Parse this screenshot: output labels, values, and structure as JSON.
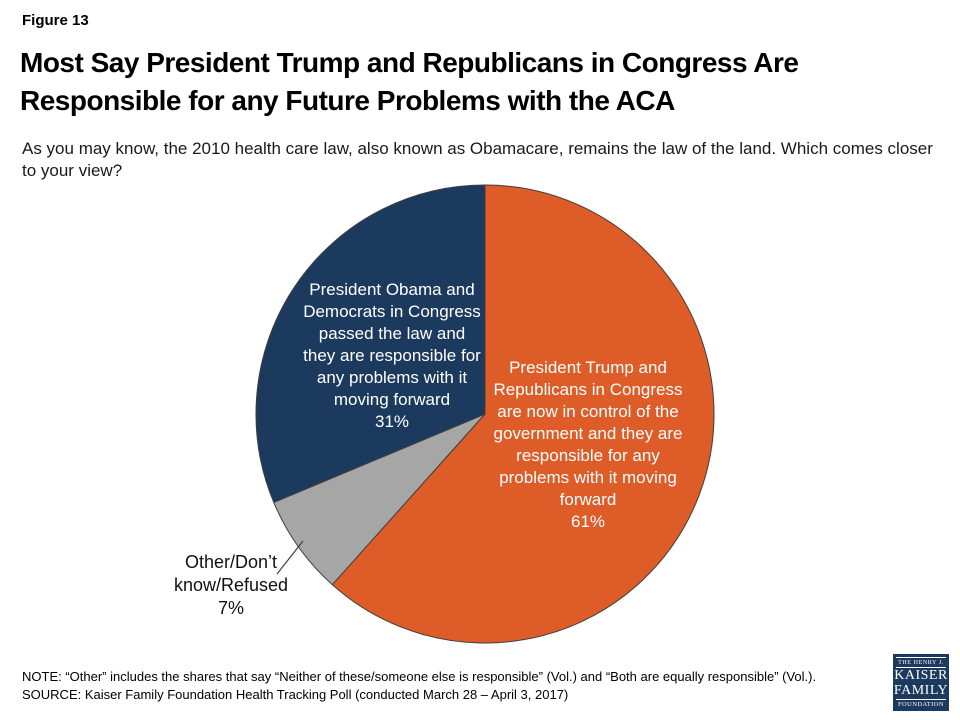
{
  "figure_label": "Figure 13",
  "title_lines": [
    "Most Say President Trump and Republicans in Congress Are",
    "Responsible for any Future Problems with the ACA"
  ],
  "subtitle_lines": [
    "As you may know, the 2010 health care law, also known as Obamacare, remains the law of the land. Which comes closer",
    "to your view?"
  ],
  "chart_data": {
    "type": "pie",
    "title": "",
    "start": "12-oclock",
    "direction": "clockwise",
    "slice_outline_color": "#3F3F3F",
    "slices": [
      {
        "name": "trump-republicans",
        "value": 61,
        "pct_label": "61%",
        "color": "#DD5C28",
        "label_lines": [
          "President Trump and",
          "Republicans in Congress",
          "are now in control of the",
          "government and they are",
          "responsible for any",
          "problems with it moving",
          "forward",
          "61%"
        ]
      },
      {
        "name": "other-dont-know-refused",
        "value": 7,
        "pct_label": "7%",
        "color": "#A6A6A6",
        "label_lines": [
          "Other/Don’t",
          "know/Refused",
          "7%"
        ]
      },
      {
        "name": "obama-democrats",
        "value": 31,
        "pct_label": "31%",
        "color": "#1C3A5E",
        "label_lines": [
          "President Obama and",
          "Democrats in Congress",
          "passed the law and",
          "they are responsible for",
          "any problems with it",
          "moving forward",
          "31%"
        ]
      }
    ]
  },
  "footer": {
    "note": "NOTE: “Other” includes the shares that say “Neither of these/someone else is responsible” (Vol.) and “Both are equally responsible” (Vol.).",
    "source": "SOURCE: Kaiser Family Foundation Health Tracking Poll (conducted March 28 – April 3, 2017)"
  },
  "logo": {
    "bg_color": "#1C3A5E",
    "top": "THE HENRY J.",
    "line1": "KAISER",
    "line2": "FAMILY",
    "bottom": "FOUNDATION"
  }
}
